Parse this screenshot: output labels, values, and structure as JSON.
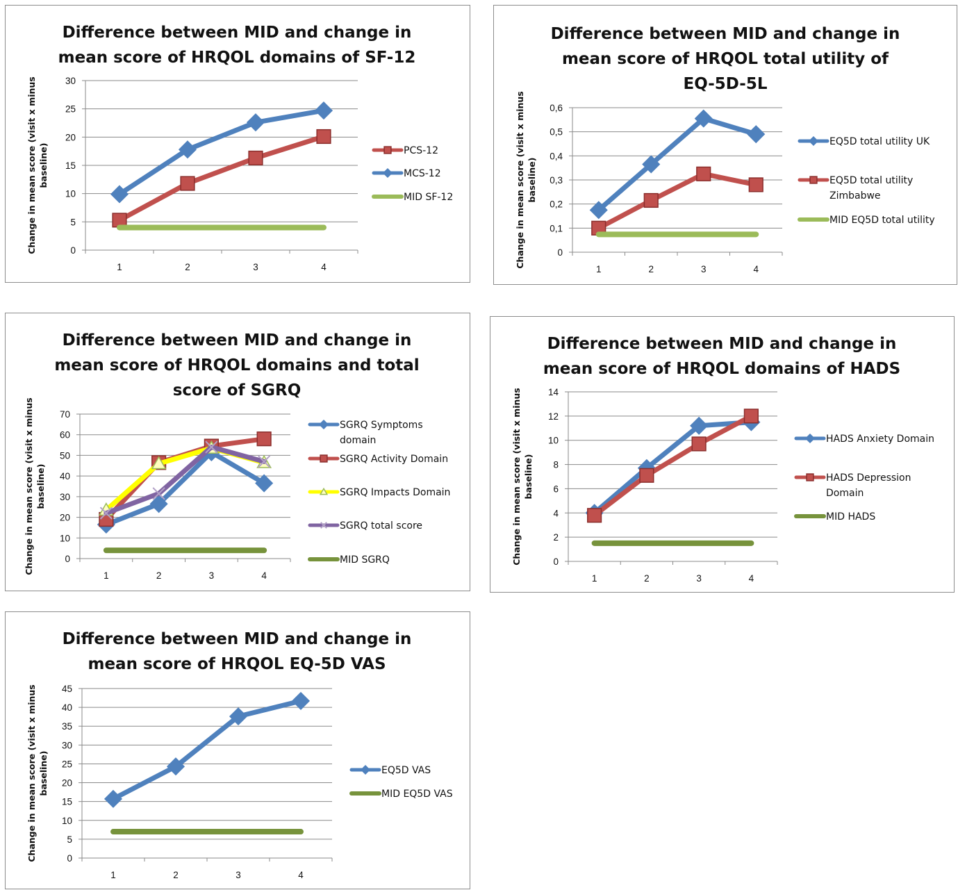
{
  "chart_data": [
    {
      "type": "line",
      "title": [
        "Difference between MID and change in",
        "mean score of HRQOL domains  of SF-12"
      ],
      "ylabel": [
        "Change in mean score (visit x minus",
        "baseline)"
      ],
      "xlabel": "",
      "categories": [
        "1",
        "2",
        "3",
        "4"
      ],
      "yticks": [
        "0",
        "5",
        "10",
        "15",
        "20",
        "25",
        "30"
      ],
      "ylim": [
        0,
        30
      ],
      "grid": true,
      "legend_position": "right",
      "series": [
        {
          "name": [
            "PCS-12"
          ],
          "values": [
            5.3,
            11.8,
            16.3,
            20.1
          ],
          "color": "#c0504d",
          "marker": "square"
        },
        {
          "name": [
            "MCS-12"
          ],
          "values": [
            9.9,
            17.8,
            22.6,
            24.7
          ],
          "color": "#4f81bd",
          "marker": "diamond"
        },
        {
          "name": [
            "MID SF-12"
          ],
          "values": [
            4,
            4,
            4,
            4
          ],
          "color": "#9bbb59",
          "marker": "none"
        }
      ]
    },
    {
      "type": "line",
      "title": [
        "Difference between MID and change in",
        "mean score of HRQOL total utility of",
        "EQ-5D-5L"
      ],
      "ylabel": [
        "Change in mean score (visit x minus",
        "baseline)"
      ],
      "xlabel": "",
      "categories": [
        "1",
        "2",
        "3",
        "4"
      ],
      "yticks": [
        "0",
        "0,1",
        "0,2",
        "0,3",
        "0,4",
        "0,5",
        "0,6"
      ],
      "ylim": [
        0,
        0.6
      ],
      "grid": true,
      "legend_position": "right",
      "series": [
        {
          "name": [
            "EQ5D total  utility UK"
          ],
          "values": [
            0.175,
            0.365,
            0.555,
            0.49
          ],
          "color": "#4f81bd",
          "marker": "diamond"
        },
        {
          "name": [
            "EQ5D total  utility",
            "Zimbabwe"
          ],
          "values": [
            0.1,
            0.215,
            0.325,
            0.28
          ],
          "color": "#c0504d",
          "marker": "square"
        },
        {
          "name": [
            "MID EQ5D total  utility"
          ],
          "values": [
            0.074,
            0.074,
            0.074,
            0.074
          ],
          "color": "#9bbb59",
          "marker": "none"
        }
      ]
    },
    {
      "type": "line",
      "title": [
        "Difference between MID and change in",
        "mean score of HRQOL domains  and total",
        "score of SGRQ"
      ],
      "ylabel": [
        "Change in mean score (visit x minus",
        "baseline)"
      ],
      "xlabel": "",
      "categories": [
        "1",
        "2",
        "3",
        "4"
      ],
      "yticks": [
        "0",
        "10",
        "20",
        "30",
        "40",
        "50",
        "60",
        "70"
      ],
      "ylim": [
        0,
        70
      ],
      "grid": true,
      "legend_position": "right",
      "series": [
        {
          "name": [
            "SGRQ Symptoms",
            "domain"
          ],
          "values": [
            16.5,
            26.5,
            51.5,
            36.5
          ],
          "color": "#4f81bd",
          "marker": "diamond"
        },
        {
          "name": [
            "SGRQ Activity Domain"
          ],
          "values": [
            19,
            46.5,
            54.5,
            58
          ],
          "color": "#c0504d",
          "marker": "square"
        },
        {
          "name": [
            "SGRQ Impacts  Domain"
          ],
          "values": [
            23.5,
            46,
            53.5,
            46.5
          ],
          "color": "#ffff00",
          "marker": "triangle"
        },
        {
          "name": [
            "SGRQ total score"
          ],
          "values": [
            22,
            31.5,
            54,
            47
          ],
          "color": "#8064a2",
          "marker": "x"
        },
        {
          "name": [
            "MID SGRQ"
          ],
          "values": [
            4,
            4,
            4,
            4
          ],
          "color": "#77933c",
          "marker": "none"
        }
      ]
    },
    {
      "type": "line",
      "title": [
        "Difference between MID and change in",
        "mean score of HRQOL domains  of HADS"
      ],
      "ylabel": [
        "Change in mean score (visit x minus",
        "baseline)"
      ],
      "xlabel": "",
      "categories": [
        "1",
        "2",
        "3",
        "4"
      ],
      "yticks": [
        "0",
        "2",
        "4",
        "6",
        "8",
        "10",
        "12",
        "14"
      ],
      "ylim": [
        0,
        14
      ],
      "grid": true,
      "legend_position": "right",
      "series": [
        {
          "name": [
            "HADS Anxiety Domain"
          ],
          "values": [
            4,
            7.7,
            11.2,
            11.5
          ],
          "color": "#4f81bd",
          "marker": "diamond"
        },
        {
          "name": [
            "HADS Depression",
            "Domain"
          ],
          "values": [
            3.8,
            7.1,
            9.7,
            12
          ],
          "color": "#c0504d",
          "marker": "square"
        },
        {
          "name": [
            "MID HADS"
          ],
          "values": [
            1.5,
            1.5,
            1.5,
            1.5
          ],
          "color": "#77933c",
          "marker": "none"
        }
      ]
    },
    {
      "type": "line",
      "title": [
        "Difference between MID and change in",
        "mean score of HRQOL EQ-5D VAS"
      ],
      "ylabel": [
        "Change in mean score (visit x minus",
        "baseline)"
      ],
      "xlabel": "",
      "categories": [
        "1",
        "2",
        "3",
        "4"
      ],
      "yticks": [
        "0",
        "5",
        "10",
        "15",
        "20",
        "25",
        "30",
        "35",
        "40",
        "45"
      ],
      "ylim": [
        0,
        45
      ],
      "grid": true,
      "legend_position": "right",
      "series": [
        {
          "name": [
            "EQ5D VAS"
          ],
          "values": [
            15.7,
            24.3,
            37.6,
            41.7
          ],
          "color": "#4f81bd",
          "marker": "diamond"
        },
        {
          "name": [
            "MID EQ5D VAS"
          ],
          "values": [
            7,
            7,
            7,
            7
          ],
          "color": "#77933c",
          "marker": "none"
        }
      ]
    }
  ]
}
